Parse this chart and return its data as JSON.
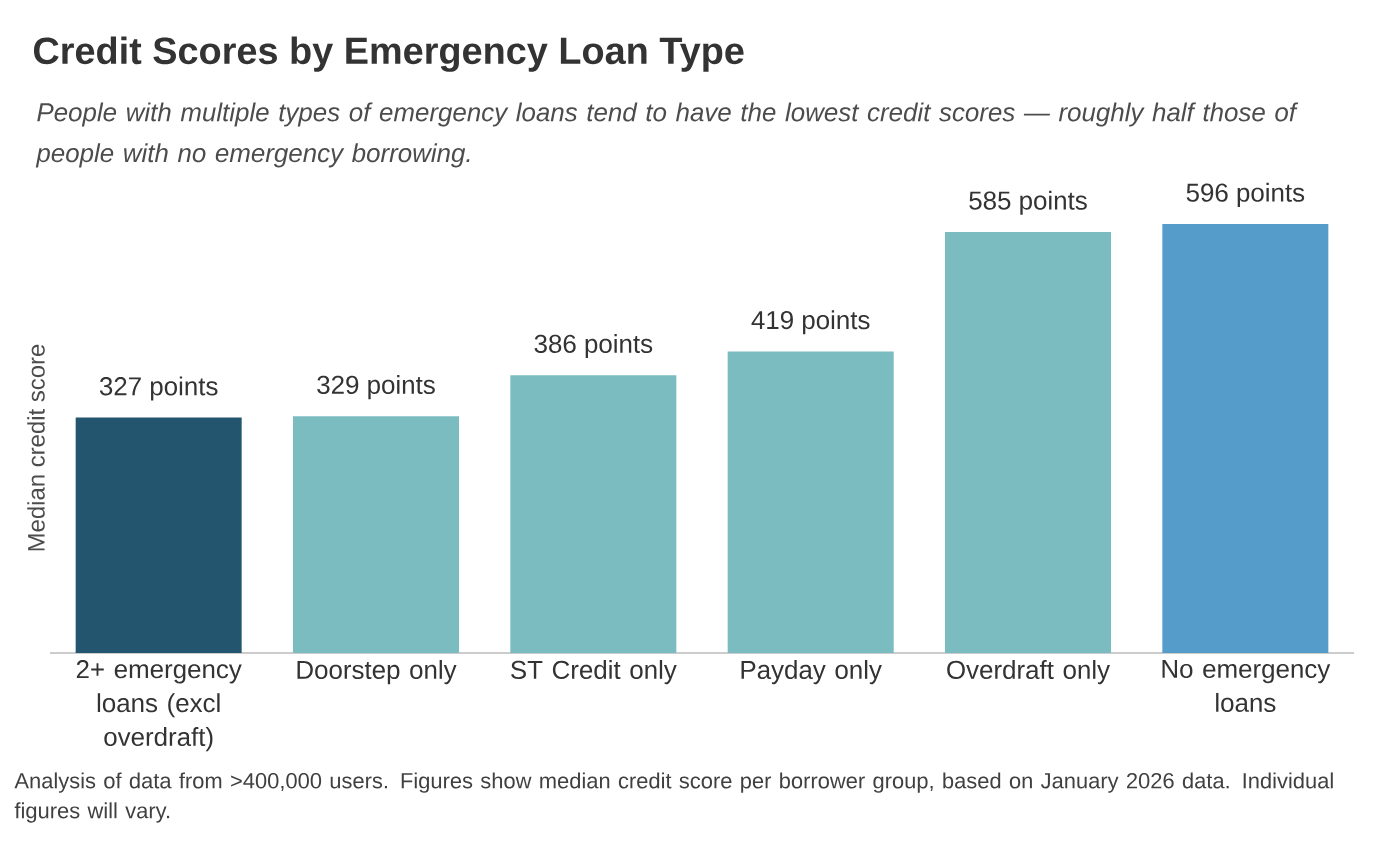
{
  "chart_data": {
    "type": "bar",
    "title": "Credit Scores by Emergency Loan Type",
    "subtitle": "People with multiple types of emergency loans tend to have the lowest credit scores — roughly half those of people with no emergency borrowing.",
    "ylabel": "Median credit score",
    "categories": [
      "2+ emergency loans (excl overdraft)",
      "Doorstep only",
      "ST Credit only",
      "Payday only",
      "Overdraft only",
      "No emergency loans"
    ],
    "values": [
      327,
      329,
      386,
      419,
      585,
      596
    ],
    "colors": [
      "#24556f",
      "#7bbcc0",
      "#7bbcc0",
      "#7bbcc0",
      "#7bbcc0",
      "#559cca"
    ],
    "value_labels": [
      "327 points",
      "329 points",
      "386 points",
      "419 points",
      "585 points",
      "596 points"
    ],
    "ylim": [
      0,
      596
    ],
    "tick_labels": "x",
    "annotations": [
      "Analysis of data from >400,000 users. Figures show median credit score per borrower group, based on January 2026 data. Individual figures will vary."
    ]
  }
}
